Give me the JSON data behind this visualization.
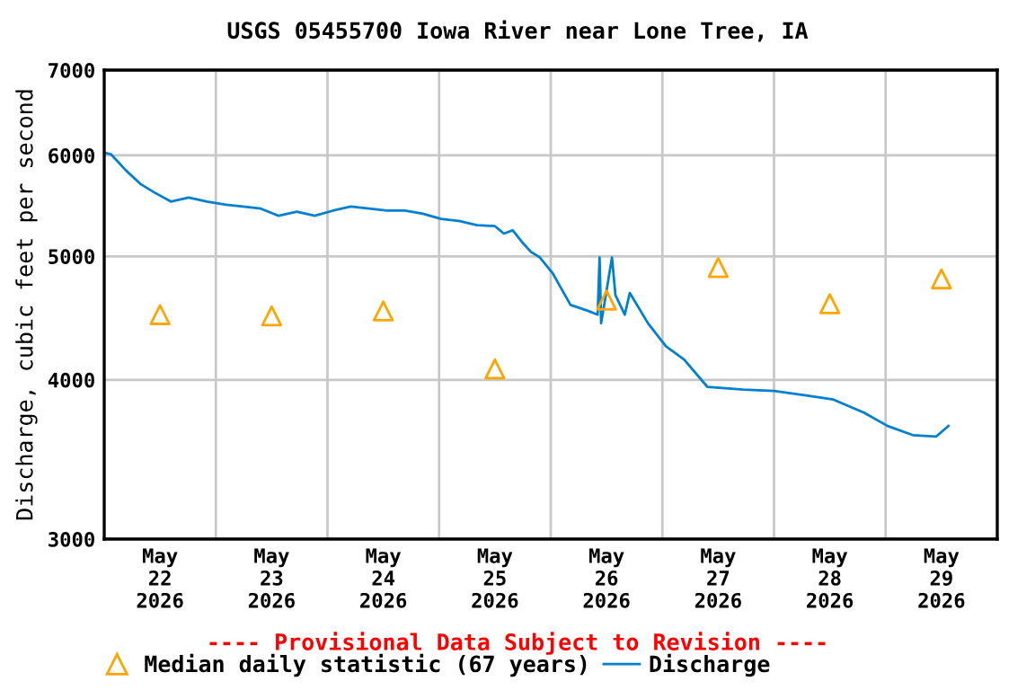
{
  "chart_data": {
    "type": "line",
    "title": "USGS 05455700 Iowa River near Lone Tree, IA",
    "ylabel": "Discharge, cubic feet per second",
    "annotations": [
      "---- Provisional Data Subject to Revision ----"
    ],
    "log": "y",
    "grid": true,
    "legend": "bottom",
    "xlim": [
      "2026-05-22T00:00",
      "2026-05-30T00:00"
    ],
    "xticks": [
      {
        "value": "2026-05-22T12:00",
        "label": "May\n22\n2026"
      },
      {
        "value": "2026-05-23T00:00",
        "label": null
      },
      {
        "value": "2026-05-23T12:00",
        "label": "May\n23\n2026"
      },
      {
        "value": "2026-05-24T00:00",
        "label": null
      },
      {
        "value": "2026-05-24T12:00",
        "label": "May\n24\n2026"
      },
      {
        "value": "2026-05-25T00:00",
        "label": null
      },
      {
        "value": "2026-05-25T12:00",
        "label": "May\n25\n2026"
      },
      {
        "value": "2026-05-26T00:00",
        "label": null
      },
      {
        "value": "2026-05-26T12:00",
        "label": "May\n26\n2026"
      },
      {
        "value": "2026-05-27T00:00",
        "label": null
      },
      {
        "value": "2026-05-27T12:00",
        "label": "May\n27\n2026"
      },
      {
        "value": "2026-05-28T00:00",
        "label": null
      },
      {
        "value": "2026-05-28T12:00",
        "label": "May\n28\n2026"
      },
      {
        "value": "2026-05-29T00:00",
        "label": null
      },
      {
        "value": "2026-05-29T12:00",
        "label": "May\n29\n2026"
      }
    ],
    "ylim": [
      3000,
      7000
    ],
    "yticks": [
      3000,
      4000,
      5000,
      6000,
      7000
    ],
    "series": [
      {
        "name": "Median daily statistic (67 years)",
        "type": "scatter",
        "marker": "triangle",
        "color": "#ffa500",
        "x": [
          "2026-05-22T12:00",
          "2026-05-23T12:00",
          "2026-05-24T12:00",
          "2026-05-25T12:00",
          "2026-05-26T12:00",
          "2026-05-27T12:00",
          "2026-05-28T12:00",
          "2026-05-29T12:00"
        ],
        "values": [
          4500,
          4490,
          4530,
          4080,
          4620,
          4900,
          4590,
          4800
        ]
      },
      {
        "name": "Discharge",
        "color": "#0080d0",
        "x": [
          "2026-05-22T00:00",
          "2026-05-22T01:30",
          "2026-05-22T04:40",
          "2026-05-22T07:45",
          "2026-05-22T10:50",
          "2026-05-22T14:20",
          "2026-05-22T18:10",
          "2026-05-22T22:05",
          "2026-05-23T01:55",
          "2026-05-23T05:50",
          "2026-05-23T09:40",
          "2026-05-23T13:30",
          "2026-05-23T17:25",
          "2026-05-23T21:15",
          "2026-05-24T01:10",
          "2026-05-24T05:00",
          "2026-05-24T08:55",
          "2026-05-24T12:50",
          "2026-05-24T16:40",
          "2026-05-24T20:30",
          "2026-05-25T00:25",
          "2026-05-25T04:15",
          "2026-05-25T08:10",
          "2026-05-25T12:00",
          "2026-05-25T13:55",
          "2026-05-25T15:50",
          "2026-05-25T17:50",
          "2026-05-25T19:45",
          "2026-05-25T21:40",
          "2026-05-26T00:25",
          "2026-05-26T04:15",
          "2026-05-26T08:05",
          "2026-05-26T10:05",
          "2026-05-26T10:30",
          "2026-05-26T10:50",
          "2026-05-26T12:00",
          "2026-05-26T13:10",
          "2026-05-26T13:55",
          "2026-05-26T15:55",
          "2026-05-26T17:00",
          "2026-05-26T20:55",
          "2026-05-27T00:45",
          "2026-05-27T04:40",
          "2026-05-27T09:40",
          "2026-05-27T17:25",
          "2026-05-28T00:00",
          "2026-05-28T06:35",
          "2026-05-28T12:45",
          "2026-05-28T19:20",
          "2026-05-29T00:25",
          "2026-05-29T05:50",
          "2026-05-29T10:50",
          "2026-05-29T13:30"
        ],
        "values": [
          6030,
          6010,
          5840,
          5700,
          5610,
          5520,
          5560,
          5520,
          5490,
          5470,
          5450,
          5380,
          5420,
          5380,
          5430,
          5470,
          5450,
          5430,
          5430,
          5400,
          5350,
          5330,
          5290,
          5280,
          5210,
          5240,
          5130,
          5040,
          4990,
          4850,
          4580,
          4530,
          4500,
          4990,
          4430,
          4700,
          4990,
          4660,
          4500,
          4680,
          4430,
          4250,
          4150,
          3950,
          3930,
          3920,
          3890,
          3860,
          3770,
          3680,
          3620,
          3610,
          3680
        ]
      }
    ]
  }
}
